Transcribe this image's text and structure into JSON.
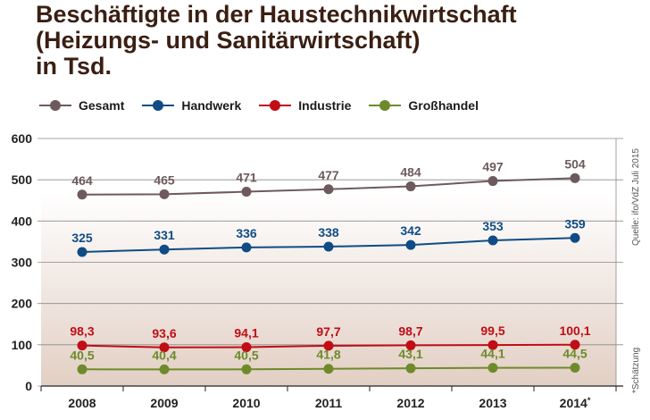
{
  "title_lines": [
    "Beschäftigte in der Haustechnikwirtschaft",
    "(Heizungs- und Sanitärwirtschaft)",
    "in Tsd."
  ],
  "source": "Quelle: ifo/VdZ Juli 2015",
  "footnote": "*Schätzung",
  "chart_data": {
    "type": "line",
    "title": "Beschäftigte in der Haustechnikwirtschaft (Heizungs- und Sanitärwirtschaft) in Tsd.",
    "xlabel": "",
    "ylabel": "",
    "ylim": [
      0,
      600
    ],
    "yticks": [
      "0",
      "100",
      "200",
      "300",
      "400",
      "500",
      "600"
    ],
    "x": [
      "2008",
      "2009",
      "2010",
      "2011",
      "2012",
      "2013",
      "2014"
    ],
    "x_suffix_last": "*",
    "grid": true,
    "legend_position": "top-left",
    "series": [
      {
        "name": "Gesamt",
        "color": "#6e5a5c",
        "values": [
          464,
          465,
          471,
          477,
          484,
          497,
          504
        ],
        "labels": [
          "464",
          "465",
          "471",
          "477",
          "484",
          "497",
          "504"
        ]
      },
      {
        "name": "Handwerk",
        "color": "#0f4c85",
        "values": [
          325,
          331,
          336,
          338,
          342,
          353,
          359
        ],
        "labels": [
          "325",
          "331",
          "336",
          "338",
          "342",
          "353",
          "359"
        ]
      },
      {
        "name": "Industrie",
        "color": "#c00d16",
        "values": [
          98.3,
          93.6,
          94.1,
          97.7,
          98.7,
          99.5,
          100.1
        ],
        "labels": [
          "98,3",
          "93,6",
          "94,1",
          "97,7",
          "98,7",
          "99,5",
          "100,1"
        ]
      },
      {
        "name": "Großhandel",
        "color": "#6e8a2a",
        "values": [
          40.5,
          40.4,
          40.5,
          41.8,
          43.1,
          44.1,
          44.5
        ],
        "labels": [
          "40,5",
          "40,4",
          "40,5",
          "41,8",
          "43,1",
          "44,1",
          "44,5"
        ]
      }
    ]
  }
}
